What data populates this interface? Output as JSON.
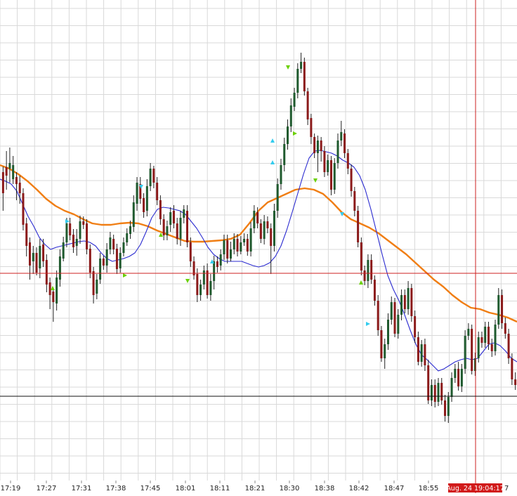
{
  "chart_data": {
    "type": "candlestick",
    "grid": true,
    "colors": {
      "background": "#ffffff",
      "grid": "#d9d9d9",
      "up_candle": "#1f5a2e",
      "down_candle": "#8b1a1a",
      "wick": "#222222",
      "fast_ma": "#2b2bd0",
      "slow_ma": "#f07e14",
      "crosshair": "#cc2020",
      "level_line": "#111111",
      "axis_text": "#222222",
      "cursor_label_bg": "#d11a1a",
      "cursor_label_text": "#ffffff",
      "signal_green": "#6ad000",
      "signal_cyan": "#33ccee"
    },
    "x_axis": {
      "tick_labels": [
        "17:19",
        "17:27",
        "17:31",
        "17:38",
        "17:45",
        "18:01",
        "18:11",
        "18:21",
        "18:30",
        "18:38",
        "18:42",
        "18:47",
        "18:55"
      ],
      "cursor_label": "Aug. 24 19:04:17",
      "trailing_fragment": "7"
    },
    "candles": [
      [
        275,
        245,
        300,
        237,
        2
      ],
      [
        250,
        238,
        270,
        215,
        2
      ],
      [
        240,
        232,
        260,
        210,
        1
      ],
      [
        235,
        255,
        262,
        222,
        1
      ],
      [
        252,
        262,
        285,
        245,
        0
      ],
      [
        260,
        275,
        290,
        250,
        0
      ],
      [
        275,
        320,
        328,
        268,
        0
      ],
      [
        318,
        350,
        365,
        310,
        0
      ],
      [
        345,
        378,
        398,
        338,
        0
      ],
      [
        372,
        360,
        390,
        350,
        1
      ],
      [
        360,
        388,
        392,
        352,
        0
      ],
      [
        382,
        350,
        396,
        340,
        1
      ],
      [
        348,
        372,
        380,
        340,
        0
      ],
      [
        370,
        405,
        416,
        362,
        0
      ],
      [
        402,
        420,
        440,
        395,
        0
      ],
      [
        415,
        430,
        458,
        410,
        0
      ],
      [
        432,
        395,
        442,
        385,
        1
      ],
      [
        398,
        365,
        408,
        355,
        1
      ],
      [
        368,
        345,
        372,
        337,
        1
      ],
      [
        345,
        318,
        352,
        310,
        1
      ],
      [
        318,
        335,
        342,
        310,
        0
      ],
      [
        334,
        352,
        360,
        326,
        0
      ],
      [
        350,
        340,
        364,
        326,
        1
      ],
      [
        340,
        315,
        347,
        307,
        1
      ],
      [
        315,
        320,
        326,
        308,
        0
      ],
      [
        318,
        355,
        362,
        312,
        0
      ],
      [
        354,
        388,
        396,
        348,
        0
      ],
      [
        386,
        420,
        432,
        380,
        0
      ],
      [
        418,
        398,
        426,
        390,
        1
      ],
      [
        398,
        368,
        404,
        360,
        1
      ],
      [
        368,
        378,
        384,
        364,
        0
      ],
      [
        378,
        355,
        388,
        346,
        1
      ],
      [
        355,
        338,
        362,
        330,
        1
      ],
      [
        340,
        355,
        362,
        334,
        0
      ],
      [
        354,
        383,
        390,
        347,
        0
      ],
      [
        382,
        360,
        388,
        352,
        1
      ],
      [
        360,
        345,
        365,
        338,
        1
      ],
      [
        345,
        332,
        350,
        325,
        1
      ],
      [
        333,
        322,
        340,
        314,
        1
      ],
      [
        323,
        288,
        330,
        278,
        1
      ],
      [
        290,
        260,
        300,
        252,
        1
      ],
      [
        262,
        283,
        290,
        252,
        0
      ],
      [
        282,
        302,
        310,
        275,
        0
      ],
      [
        300,
        265,
        308,
        255,
        1
      ],
      [
        265,
        240,
        272,
        232,
        1
      ],
      [
        240,
        260,
        268,
        236,
        0
      ],
      [
        260,
        285,
        292,
        252,
        0
      ],
      [
        285,
        312,
        320,
        278,
        0
      ],
      [
        312,
        335,
        342,
        305,
        0
      ],
      [
        335,
        322,
        342,
        314,
        1
      ],
      [
        320,
        302,
        330,
        295,
        1
      ],
      [
        300,
        318,
        325,
        292,
        0
      ],
      [
        318,
        340,
        348,
        310,
        0
      ],
      [
        340,
        310,
        350,
        300,
        1
      ],
      [
        310,
        298,
        318,
        292,
        1
      ],
      [
        300,
        345,
        352,
        292,
        0
      ],
      [
        345,
        372,
        380,
        338,
        0
      ],
      [
        372,
        392,
        398,
        365,
        0
      ],
      [
        390,
        420,
        430,
        382,
        0
      ],
      [
        420,
        405,
        428,
        398,
        1
      ],
      [
        405,
        385,
        412,
        378,
        1
      ],
      [
        385,
        420,
        425,
        375,
        0
      ],
      [
        420,
        400,
        428,
        390,
        1
      ],
      [
        400,
        372,
        412,
        364,
        1
      ],
      [
        372,
        380,
        388,
        365,
        0
      ],
      [
        378,
        362,
        385,
        355,
        1
      ],
      [
        362,
        342,
        370,
        334,
        1
      ],
      [
        342,
        368,
        375,
        334,
        0
      ],
      [
        368,
        355,
        372,
        344,
        1
      ],
      [
        355,
        340,
        362,
        332,
        1
      ],
      [
        340,
        358,
        365,
        333,
        0
      ],
      [
        358,
        345,
        362,
        336,
        1
      ],
      [
        345,
        340,
        350,
        332,
        1
      ],
      [
        340,
        358,
        364,
        333,
        0
      ],
      [
        358,
        325,
        365,
        316,
        1
      ],
      [
        325,
        300,
        332,
        292,
        1
      ],
      [
        302,
        318,
        325,
        295,
        0
      ],
      [
        318,
        340,
        346,
        312,
        0
      ],
      [
        340,
        315,
        348,
        306,
        1
      ],
      [
        315,
        325,
        332,
        308,
        0
      ],
      [
        325,
        350,
        390,
        318,
        0
      ],
      [
        350,
        300,
        358,
        290,
        1
      ],
      [
        300,
        262,
        310,
        254,
        1
      ],
      [
        262,
        235,
        270,
        226,
        1
      ],
      [
        235,
        205,
        244,
        196,
        1
      ],
      [
        205,
        180,
        213,
        170,
        1
      ],
      [
        180,
        150,
        188,
        140,
        1
      ],
      [
        152,
        132,
        158,
        125,
        1
      ],
      [
        132,
        98,
        140,
        90,
        1
      ],
      [
        98,
        88,
        104,
        75,
        1
      ],
      [
        88,
        130,
        136,
        82,
        0
      ],
      [
        130,
        170,
        178,
        125,
        0
      ],
      [
        168,
        195,
        205,
        162,
        0
      ],
      [
        195,
        218,
        225,
        190,
        0
      ],
      [
        218,
        200,
        245,
        193,
        1
      ],
      [
        200,
        215,
        230,
        195,
        0
      ],
      [
        215,
        245,
        252,
        208,
        0
      ],
      [
        245,
        228,
        250,
        220,
        1
      ],
      [
        228,
        270,
        278,
        222,
        0
      ],
      [
        270,
        232,
        276,
        225,
        1
      ],
      [
        232,
        200,
        240,
        190,
        1
      ],
      [
        200,
        188,
        208,
        172,
        1
      ],
      [
        190,
        218,
        225,
        184,
        0
      ],
      [
        218,
        240,
        248,
        212,
        0
      ],
      [
        240,
        272,
        280,
        234,
        0
      ],
      [
        272,
        300,
        308,
        266,
        0
      ],
      [
        300,
        345,
        352,
        293,
        0
      ],
      [
        345,
        385,
        392,
        338,
        0
      ],
      [
        385,
        400,
        406,
        378,
        0
      ],
      [
        400,
        370,
        410,
        362,
        1
      ],
      [
        370,
        398,
        404,
        362,
        0
      ],
      [
        398,
        428,
        435,
        392,
        0
      ],
      [
        428,
        470,
        478,
        420,
        0
      ],
      [
        470,
        510,
        515,
        464,
        0
      ],
      [
        510,
        490,
        525,
        482,
        1
      ],
      [
        490,
        455,
        498,
        446,
        1
      ],
      [
        455,
        430,
        462,
        422,
        1
      ],
      [
        430,
        475,
        480,
        424,
        0
      ],
      [
        475,
        448,
        482,
        440,
        1
      ],
      [
        448,
        420,
        456,
        412,
        1
      ],
      [
        420,
        440,
        446,
        412,
        0
      ],
      [
        440,
        410,
        448,
        400,
        1
      ],
      [
        410,
        450,
        458,
        404,
        0
      ],
      [
        450,
        480,
        488,
        442,
        0
      ],
      [
        480,
        515,
        520,
        472,
        0
      ],
      [
        515,
        490,
        522,
        484,
        1
      ],
      [
        490,
        520,
        528,
        482,
        0
      ],
      [
        520,
        570,
        575,
        512,
        0
      ],
      [
        570,
        548,
        578,
        540,
        1
      ],
      [
        548,
        572,
        580,
        540,
        0
      ],
      [
        572,
        545,
        578,
        538,
        1
      ],
      [
        545,
        570,
        576,
        538,
        0
      ],
      [
        570,
        592,
        600,
        562,
        0
      ],
      [
        592,
        565,
        602,
        558,
        1
      ],
      [
        565,
        538,
        572,
        530,
        1
      ],
      [
        538,
        525,
        545,
        518,
        1
      ],
      [
        525,
        550,
        556,
        515,
        0
      ],
      [
        550,
        525,
        558,
        518,
        1
      ],
      [
        525,
        478,
        532,
        470,
        1
      ],
      [
        478,
        468,
        484,
        460,
        1
      ],
      [
        468,
        528,
        533,
        462,
        0
      ],
      [
        528,
        510,
        535,
        502,
        1
      ],
      [
        510,
        480,
        516,
        472,
        1
      ],
      [
        480,
        488,
        495,
        472,
        0
      ],
      [
        488,
        465,
        495,
        458,
        1
      ],
      [
        465,
        490,
        498,
        458,
        0
      ],
      [
        490,
        500,
        508,
        482,
        0
      ],
      [
        500,
        462,
        506,
        455,
        1
      ],
      [
        462,
        420,
        468,
        410,
        1
      ],
      [
        420,
        460,
        468,
        412,
        0
      ],
      [
        460,
        475,
        482,
        452,
        0
      ],
      [
        475,
        510,
        518,
        468,
        0
      ],
      [
        510,
        540,
        548,
        503,
        0
      ],
      [
        540,
        548,
        555,
        530,
        0
      ]
    ],
    "fast_ma": [
      255,
      258,
      262,
      272,
      290,
      308,
      322,
      338,
      348,
      355,
      352,
      350,
      348,
      346,
      344,
      343,
      345,
      350,
      360,
      368,
      372,
      370,
      368,
      365,
      360,
      348,
      330,
      310,
      298,
      295,
      296,
      298,
      300,
      305,
      315,
      325,
      338,
      352,
      362,
      368,
      372,
      372,
      372,
      372,
      375,
      378,
      380,
      378,
      374,
      365,
      350,
      328,
      302,
      275,
      248,
      225,
      215,
      214,
      216,
      218,
      222,
      228,
      232,
      238,
      250,
      270,
      298,
      330,
      362,
      392,
      412,
      428,
      448,
      470,
      490,
      505,
      512,
      520,
      528,
      525,
      520,
      515,
      512,
      510,
      512,
      510,
      500,
      490,
      488,
      492,
      500,
      510,
      515
    ],
    "slow_ma": [
      235,
      240,
      248,
      258,
      270,
      283,
      293,
      300,
      305,
      312,
      318,
      320,
      320,
      318,
      317,
      318,
      322,
      328,
      333,
      338,
      343,
      344,
      344,
      343,
      342,
      340,
      334,
      318,
      300,
      288,
      282,
      276,
      270,
      268,
      270,
      276,
      288,
      302,
      312,
      318,
      324,
      332,
      342,
      352,
      362,
      374,
      386,
      398,
      408,
      420,
      430,
      438,
      440,
      445,
      448,
      452,
      458
    ],
    "signals": [
      {
        "color": "green",
        "dir": "up"
      },
      {
        "color": "cyan",
        "dir": "right"
      },
      {
        "color": "green",
        "dir": "right"
      },
      {
        "color": "cyan",
        "dir": "down"
      },
      {
        "color": "green",
        "dir": "up"
      },
      {
        "color": "green",
        "dir": "down"
      },
      {
        "color": "cyan",
        "dir": "up"
      },
      {
        "color": "cyan",
        "dir": "up"
      },
      {
        "color": "cyan",
        "dir": "up"
      },
      {
        "color": "green",
        "dir": "down"
      },
      {
        "color": "green",
        "dir": "right"
      },
      {
        "color": "green",
        "dir": "down"
      },
      {
        "color": "cyan",
        "dir": "down"
      },
      {
        "color": "green",
        "dir": "up"
      },
      {
        "color": "cyan",
        "dir": "right"
      }
    ]
  }
}
